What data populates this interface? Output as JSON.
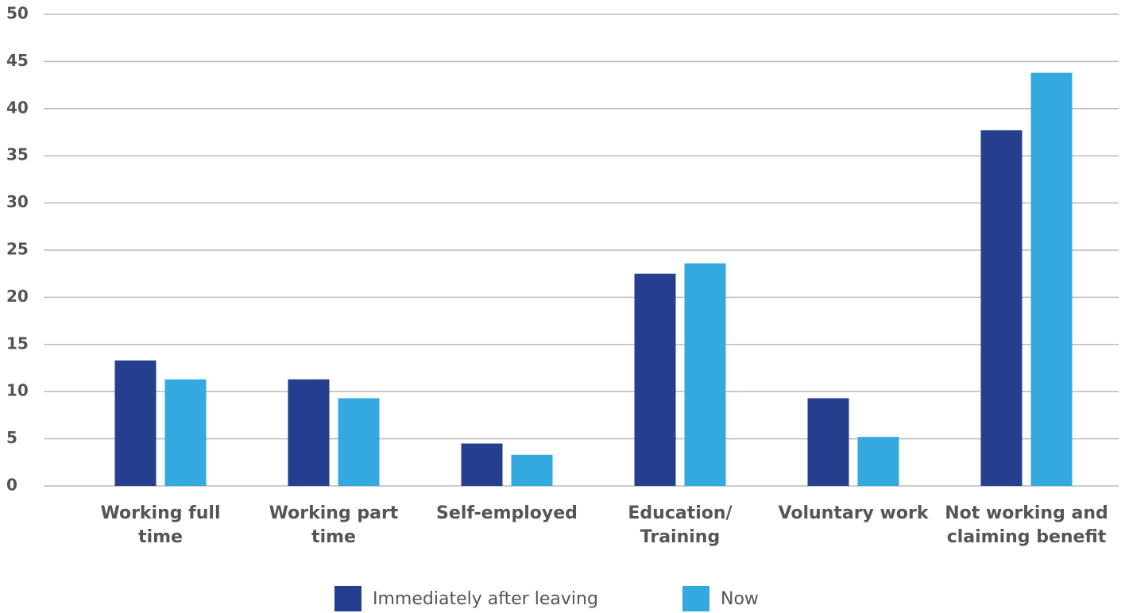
{
  "chart_data": {
    "type": "bar",
    "categories": [
      "Working full time",
      "Working part time",
      "Self-employed",
      "Education/ Training",
      "Voluntary work",
      "Not working and claiming benefit"
    ],
    "series": [
      {
        "name": "Immediately after leaving",
        "color": "#253f8e",
        "values": [
          13.3,
          11.3,
          4.5,
          22.5,
          9.3,
          37.7
        ]
      },
      {
        "name": "Now",
        "color": "#33a9df",
        "values": [
          11.3,
          9.3,
          3.3,
          23.6,
          5.2,
          43.8
        ]
      }
    ],
    "ylim": [
      0,
      50
    ],
    "yticks": [
      0,
      5,
      10,
      15,
      20,
      25,
      30,
      35,
      40,
      45,
      50
    ],
    "grid": true
  }
}
